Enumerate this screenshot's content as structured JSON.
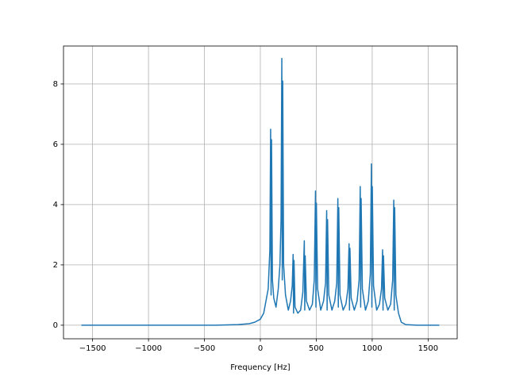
{
  "chart_data": {
    "type": "line",
    "xlabel": "Frequency [Hz]",
    "x": [
      -1600,
      -1200,
      -800,
      -400,
      -200,
      -100,
      -50,
      0,
      30,
      50,
      70,
      85,
      92,
      96,
      100,
      108,
      120,
      140,
      160,
      175,
      185,
      192,
      196,
      200,
      208,
      225,
      250,
      270,
      285,
      293,
      297,
      301,
      310,
      335,
      360,
      380,
      393,
      397,
      401,
      412,
      440,
      465,
      482,
      493,
      497,
      501,
      512,
      540,
      565,
      583,
      593,
      597,
      601,
      612,
      640,
      665,
      683,
      693,
      697,
      701,
      712,
      740,
      765,
      783,
      793,
      797,
      801,
      812,
      840,
      865,
      883,
      893,
      897,
      901,
      912,
      940,
      965,
      983,
      993,
      997,
      1001,
      1012,
      1040,
      1065,
      1083,
      1093,
      1097,
      1101,
      1112,
      1140,
      1165,
      1183,
      1193,
      1197,
      1201,
      1212,
      1235,
      1260,
      1300,
      1400,
      1600
    ],
    "series": [
      {
        "color": "#1f77b4",
        "values": [
          0,
          0,
          0,
          0,
          0.02,
          0.05,
          0.1,
          0.2,
          0.4,
          0.8,
          1.2,
          2.5,
          6.5,
          1.0,
          6.15,
          1.5,
          0.9,
          0.6,
          1.2,
          2.0,
          3.5,
          8.85,
          1.5,
          8.1,
          2.0,
          1.0,
          0.5,
          0.8,
          1.3,
          2.35,
          0.4,
          2.15,
          0.6,
          0.4,
          0.5,
          1.1,
          2.8,
          0.5,
          2.3,
          0.8,
          0.5,
          0.7,
          1.5,
          4.45,
          0.6,
          4.05,
          1.2,
          0.5,
          0.8,
          1.4,
          3.8,
          0.5,
          3.5,
          1.0,
          0.5,
          0.8,
          1.4,
          4.2,
          0.6,
          3.9,
          1.0,
          0.5,
          0.7,
          1.2,
          2.7,
          0.5,
          2.55,
          0.9,
          0.5,
          0.8,
          1.5,
          4.6,
          0.6,
          4.2,
          1.2,
          0.5,
          0.8,
          1.7,
          5.35,
          0.6,
          4.6,
          1.3,
          0.5,
          0.7,
          1.2,
          2.5,
          0.5,
          2.3,
          0.9,
          0.5,
          0.7,
          1.5,
          4.15,
          0.5,
          3.9,
          1.0,
          0.4,
          0.1,
          0.02,
          0,
          0
        ]
      }
    ],
    "xlim": [
      -1760,
      1760
    ],
    "ylim": [
      -0.45,
      9.26
    ],
    "xticks": [
      {
        "value": -1500,
        "label": "−1500"
      },
      {
        "value": -1000,
        "label": "−1000"
      },
      {
        "value": -500,
        "label": "−500"
      },
      0,
      500,
      1000,
      1500
    ],
    "yticks": [
      0,
      2,
      4,
      6,
      8
    ],
    "grid": true
  }
}
